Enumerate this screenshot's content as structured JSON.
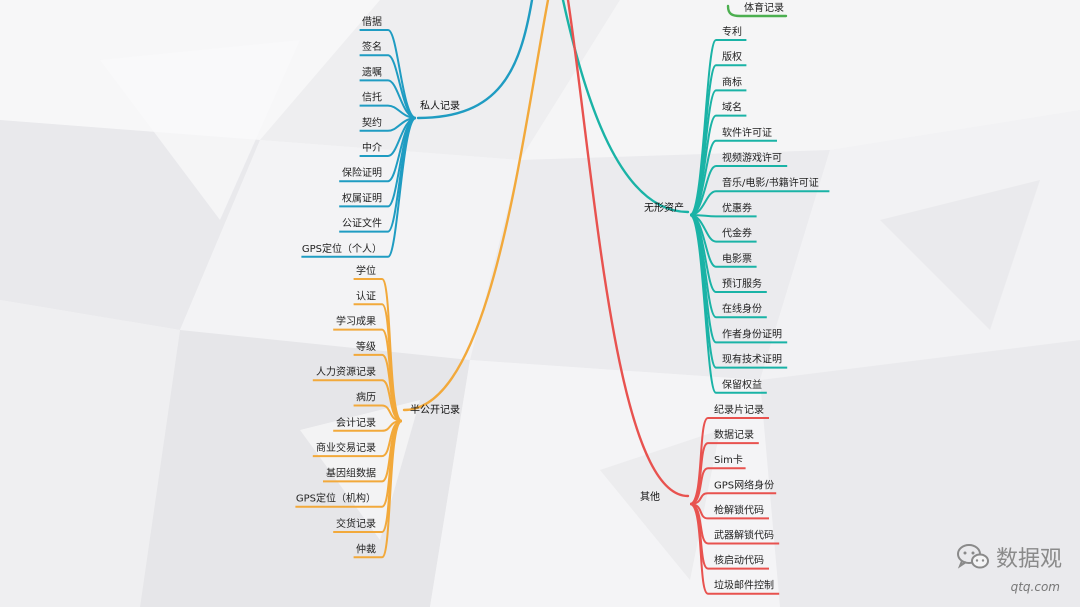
{
  "colors": {
    "blue": "#1f9cc2",
    "orange": "#f2a93b",
    "teal": "#1ab3a6",
    "red": "#e8524f",
    "green": "#4caf50"
  },
  "branches": {
    "private": {
      "label": "私人记录",
      "color": "#1f9cc2",
      "leaves": [
        "借据",
        "签名",
        "遗嘱",
        "信托",
        "契约",
        "中介",
        "保险证明",
        "权属证明",
        "公证文件",
        "GPS定位（个人）"
      ]
    },
    "semi_public": {
      "label": "半公开记录",
      "color": "#f2a93b",
      "leaves": [
        "学位",
        "认证",
        "学习成果",
        "等级",
        "人力资源记录",
        "病历",
        "会计记录",
        "商业交易记录",
        "基因组数据",
        "GPS定位（机构）",
        "交货记录",
        "仲裁"
      ]
    },
    "intangible": {
      "label": "无形资产",
      "color": "#1ab3a6",
      "leaves": [
        "专利",
        "版权",
        "商标",
        "域名",
        "软件许可证",
        "视频游戏许可",
        "音乐/电影/书籍许可证",
        "优惠券",
        "代金券",
        "电影票",
        "预订服务",
        "在线身份",
        "作者身份证明",
        "现有技术证明",
        "保留权益"
      ]
    },
    "other": {
      "label": "其他",
      "color": "#e8524f",
      "leaves": [
        "纪录片记录",
        "数据记录",
        "Sim卡",
        "GPS网络身份",
        "枪解锁代码",
        "武器解锁代码",
        "核启动代码",
        "垃圾邮件控制"
      ]
    },
    "top_right": {
      "color": "#4caf50",
      "leaves": [
        "体育记录"
      ]
    }
  },
  "watermark": {
    "icon": "wechat-icon",
    "label": "数据观",
    "url": "qtq.com"
  }
}
